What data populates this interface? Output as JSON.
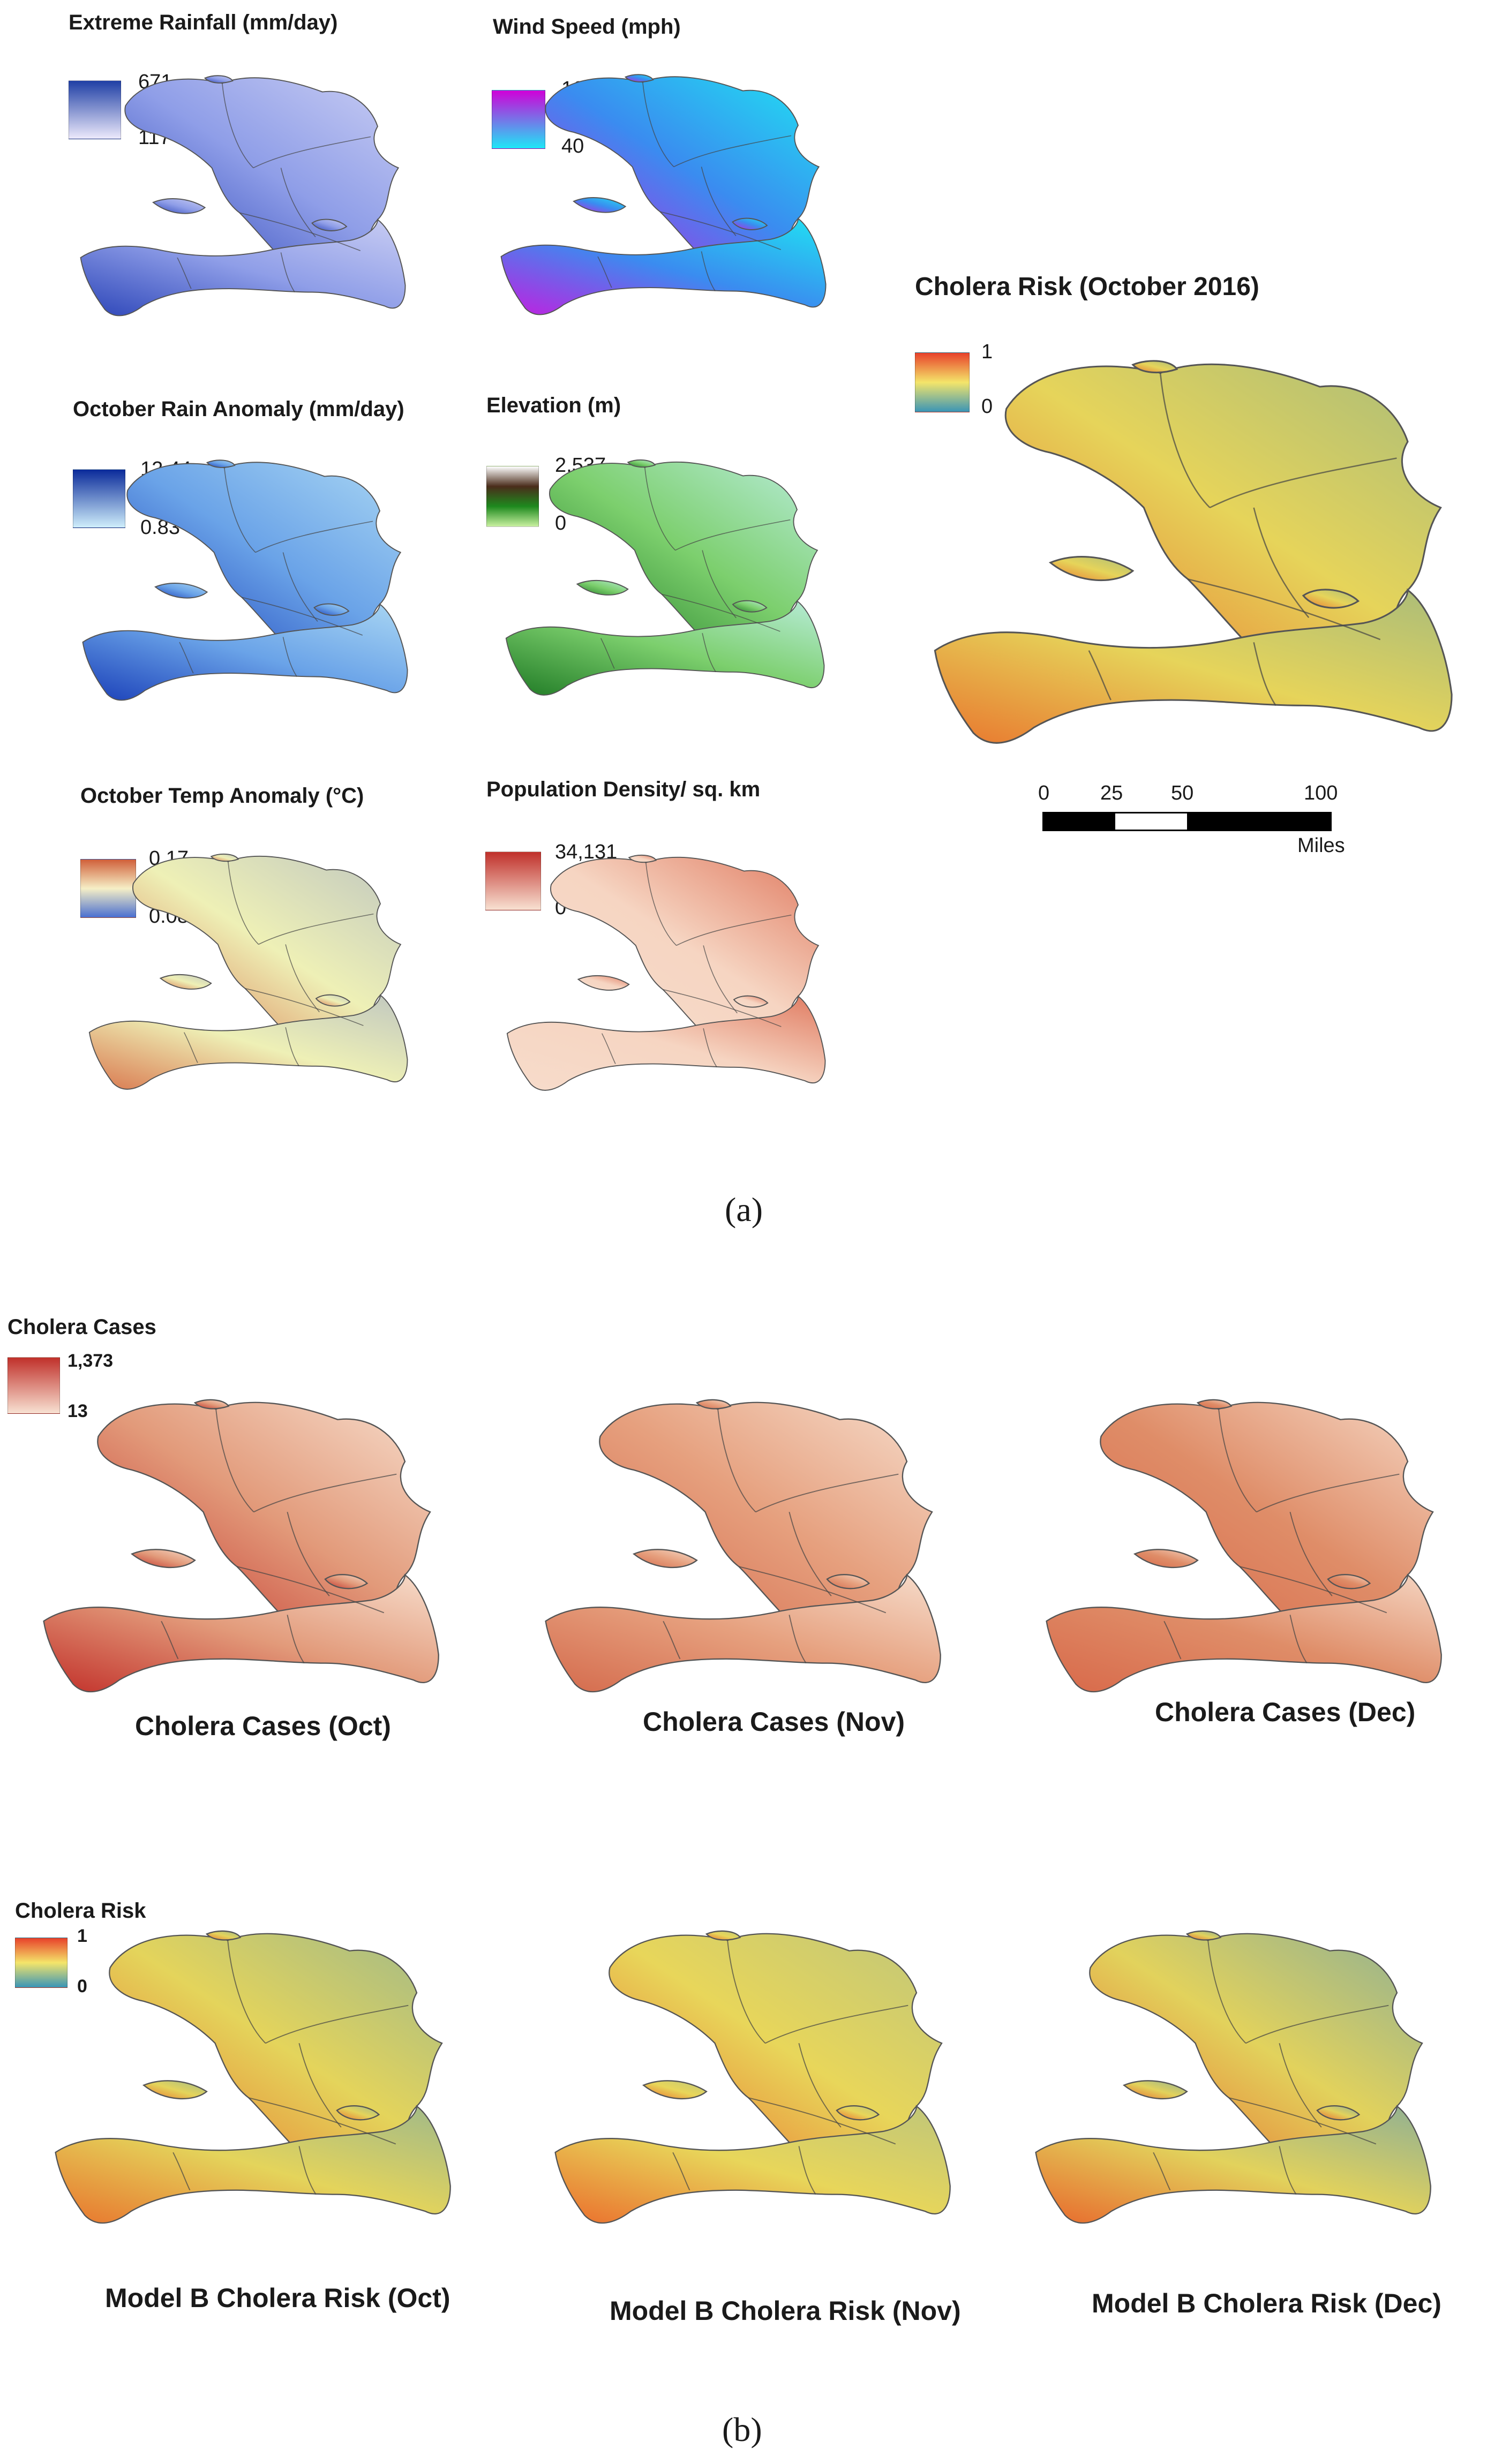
{
  "panel_a": {
    "label": "(a)",
    "maps": [
      {
        "id": "rainfall",
        "title": "Extreme Rainfall (mm/day)",
        "legend_max": "671",
        "legend_min": "117",
        "colors": [
          "#1f3fa5",
          "#ece9fb"
        ],
        "map_colors": [
          "#2c45b8",
          "#8f9ee8",
          "#c9cdf3"
        ]
      },
      {
        "id": "wind",
        "title": "Wind Speed (mph)",
        "legend_max": "160",
        "legend_min": "40",
        "colors": [
          "#d000d8",
          "#1ee7f7"
        ],
        "map_colors": [
          "#c21fe0",
          "#3a8cf0",
          "#20e2f2"
        ]
      },
      {
        "id": "rain-anomaly",
        "title": "October Rain Anomaly (mm/day)",
        "legend_max": "12.44",
        "legend_min": "0.83",
        "colors": [
          "#0a2a9a",
          "#cfeefb"
        ],
        "map_colors": [
          "#1a3fb8",
          "#6aa3e8",
          "#a9d6f3"
        ]
      },
      {
        "id": "elevation",
        "title": "Elevation (m)",
        "legend_max": "2,537",
        "legend_min": "0",
        "colors": [
          "#ffffff",
          "#4a2c1a",
          "#1e8a1e",
          "#c8f0a0"
        ],
        "map_colors": [
          "#1f7a25",
          "#7ccf6d",
          "#b8ecd9"
        ]
      },
      {
        "id": "temp-anomaly",
        "title": "October Temp Anomaly (°C)",
        "legend_max": "0.17",
        "legend_min": "0.08",
        "colors": [
          "#d0603a",
          "#f6efc6",
          "#4a6fd0"
        ],
        "map_colors": [
          "#d9784f",
          "#eef0b6",
          "#c0c7c0"
        ]
      },
      {
        "id": "population",
        "title": "Population Density/ sq. km",
        "legend_max": "34,131",
        "legend_min": "0",
        "colors": [
          "#c0302a",
          "#f8e1d2"
        ],
        "map_colors": [
          "#f7dccb",
          "#f6d5c2",
          "#e07a60"
        ]
      }
    ],
    "risk": {
      "title": "Cholera Risk (October 2016)",
      "legend_max": "1",
      "legend_min": "0",
      "colors": [
        "#e8412a",
        "#f4e56a",
        "#3a95b6"
      ],
      "map_colors": [
        "#e8762e",
        "#e6d45a",
        "#a9bc7a"
      ],
      "scale_ticks": [
        "0",
        "25",
        "50",
        "100"
      ],
      "scale_unit": "Miles"
    }
  },
  "panel_b": {
    "label": "(b)",
    "cases": {
      "legend_title": "Cholera Cases",
      "legend_max": "1,373",
      "legend_min": "13",
      "colors": [
        "#c0302a",
        "#f8e1d2"
      ],
      "maps": [
        {
          "title": "Cholera Cases (Oct)",
          "map_colors": [
            "#c2302a",
            "#e29a7a",
            "#f7ddcc"
          ]
        },
        {
          "title": "Cholera Cases (Nov)",
          "map_colors": [
            "#d46a4c",
            "#e6a07e",
            "#f6dccb"
          ]
        },
        {
          "title": "Cholera Cases (Dec)",
          "map_colors": [
            "#d8694a",
            "#df8d68",
            "#f5d6c3"
          ]
        }
      ]
    },
    "risk": {
      "legend_title": "Cholera Risk",
      "legend_max": "1",
      "legend_min": "0",
      "colors": [
        "#e8412a",
        "#f4e56a",
        "#3a95b6"
      ],
      "maps": [
        {
          "title": "Model B Cholera Risk (Oct)",
          "map_colors": [
            "#e8742d",
            "#e4d45b",
            "#9fb98a"
          ]
        },
        {
          "title": "Model B Cholera Risk (Nov)",
          "map_colors": [
            "#ea6d2c",
            "#e8d65a",
            "#bfc67a"
          ]
        },
        {
          "title": "Model B Cholera Risk (Dec)",
          "map_colors": [
            "#e8682c",
            "#e2d25c",
            "#8fb094"
          ]
        }
      ]
    }
  }
}
